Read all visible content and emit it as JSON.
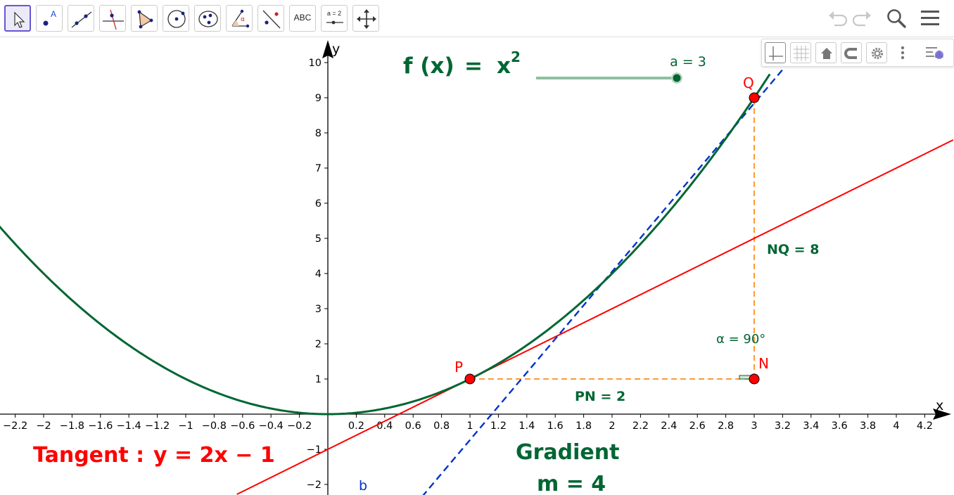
{
  "toolbar": {
    "tools": [
      {
        "name": "move-tool",
        "icon": "pointer-arrow-icon"
      },
      {
        "name": "point-tool",
        "icon": "point-icon",
        "label": "A"
      },
      {
        "name": "line-tool",
        "icon": "line-through-points-icon"
      },
      {
        "name": "perpendicular-line-tool",
        "icon": "perpendicular-line-icon"
      },
      {
        "name": "polygon-tool",
        "icon": "polygon-icon"
      },
      {
        "name": "circle-center-point-tool",
        "icon": "circle-center-icon"
      },
      {
        "name": "ellipse-tool",
        "icon": "ellipse-icon"
      },
      {
        "name": "angle-tool",
        "icon": "angle-icon",
        "label": "α"
      },
      {
        "name": "reflect-tool",
        "icon": "reflect-about-line-icon"
      },
      {
        "name": "text-tool",
        "icon": "text-icon",
        "label": "ABC"
      },
      {
        "name": "slider-tool",
        "icon": "slider-icon",
        "label": "a = 2"
      },
      {
        "name": "move-graphics-view-tool",
        "icon": "move-arrows-icon"
      }
    ],
    "right_icons": [
      "undo-icon",
      "redo-icon",
      "search-icon",
      "menu-icon"
    ]
  },
  "style_bar": {
    "buttons": [
      "axes-toggle-icon",
      "grid-toggle-icon",
      "home-icon",
      "point-capturing-icon",
      "settings-gear-icon",
      "more-options-icon",
      "toggle-style-bar-icon"
    ]
  },
  "graph": {
    "function_label": {
      "lhs": "f (x)",
      "eq": "=",
      "base": "x",
      "exp": "2"
    },
    "slider": {
      "label": "a = 3",
      "value": 3
    },
    "points": {
      "P": {
        "label": "P",
        "x": 1,
        "y": 1
      },
      "Q": {
        "label": "Q",
        "x": 3,
        "y": 9
      },
      "N": {
        "label": "N",
        "x": 3,
        "y": 1
      }
    },
    "labels": {
      "nq": "NQ = 8",
      "pn": "PN = 2",
      "angle": "α = 90°",
      "secant": "b",
      "tangent_prefix": "Tangent :",
      "tangent_eq": "y = 2x − 1",
      "gradient": "Gradient",
      "slope": "m  =  4",
      "x_axis": "x",
      "y_axis": "y"
    },
    "x_ticks": [
      "−2.2",
      "−2",
      "−1.8",
      "−1.6",
      "−1.4",
      "−1.2",
      "−1",
      "−0.8",
      "−0.6",
      "−0.4",
      "−0.2",
      "0.2",
      "0.4",
      "0.6",
      "0.8",
      "1",
      "1.2",
      "1.4",
      "1.6",
      "1.8",
      "2",
      "2.2",
      "2.4",
      "2.6",
      "2.8",
      "3",
      "3.2",
      "3.4",
      "3.6",
      "3.8",
      "4",
      "4.2"
    ],
    "x_tick_values": [
      -2.2,
      -2,
      -1.8,
      -1.6,
      -1.4,
      -1.2,
      -1,
      -0.8,
      -0.6,
      -0.4,
      -0.2,
      0.2,
      0.4,
      0.6,
      0.8,
      1,
      1.2,
      1.4,
      1.6,
      1.8,
      2,
      2.2,
      2.4,
      2.6,
      2.8,
      3,
      3.2,
      3.4,
      3.6,
      3.8,
      4,
      4.2
    ],
    "y_ticks": [
      "−2",
      "−1",
      "1",
      "2",
      "3",
      "4",
      "5",
      "6",
      "7",
      "8",
      "9",
      "10"
    ],
    "y_tick_values": [
      -2,
      -1,
      1,
      2,
      3,
      4,
      5,
      6,
      7,
      8,
      9,
      10
    ],
    "colors": {
      "curve": "#006633",
      "tangent": "#ff0000",
      "secant": "#0033cc",
      "guides": "#ff9933",
      "point": "#ff0000",
      "slider": "#006633",
      "label_green": "#006633",
      "label_red": "#ff0000",
      "tool_active": "#6557d2"
    }
  }
}
